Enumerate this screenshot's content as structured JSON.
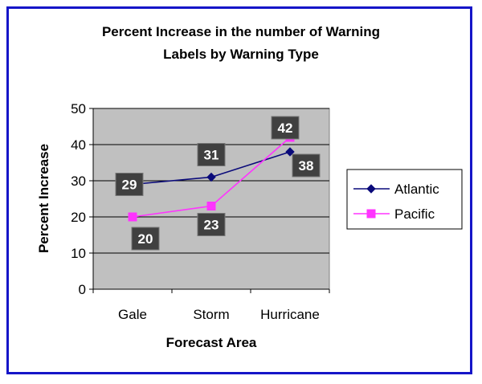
{
  "chart_data": {
    "type": "line",
    "title_lines": [
      "Percent Increase in the number of Warning",
      "Labels by Warning Type"
    ],
    "xlabel": "Forecast Area",
    "ylabel": "Percent Increase",
    "categories": [
      "Gale",
      "Storm",
      "Hurricane"
    ],
    "ylim": [
      0,
      50
    ],
    "yticks": [
      0,
      10,
      20,
      30,
      40,
      50
    ],
    "grid": true,
    "legend_position": "right",
    "series": [
      {
        "name": "Atlantic",
        "values": [
          29,
          31,
          38
        ],
        "color": "#0a0a7a",
        "marker": "diamond"
      },
      {
        "name": "Pacific",
        "values": [
          20,
          23,
          42
        ],
        "color": "#ff33ff",
        "marker": "square"
      }
    ],
    "colors": {
      "plot_background": "#c0c0c0",
      "border": "#1515c8",
      "data_label_bg": "#404040"
    }
  }
}
